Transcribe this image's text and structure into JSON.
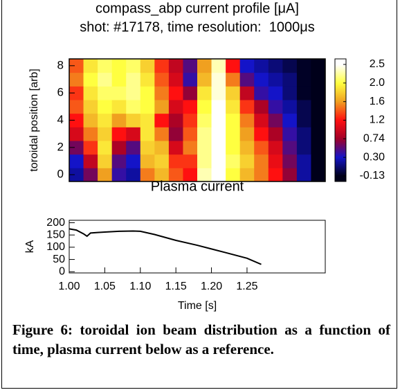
{
  "chart_data": [
    {
      "type": "heatmap",
      "title": "compass_abp current profile [μA]",
      "subtitle": "shot: #17178, time resolution:  1000μs",
      "ylabel": "toroidal position [arb]",
      "x": [
        1.01,
        1.03,
        1.05,
        1.07,
        1.09,
        1.11,
        1.13,
        1.15,
        1.17,
        1.19,
        1.21,
        1.23,
        1.25,
        1.27,
        1.29,
        1.31,
        1.33,
        1.35
      ],
      "y": [
        0,
        1,
        2,
        3,
        4,
        5,
        6,
        7,
        8
      ],
      "z": [
        [
          0.2,
          0.6,
          1.6,
          0.4,
          0.2,
          1.5,
          1.7,
          1.4,
          1.2,
          2.3,
          2.5,
          2.0,
          1.7,
          1.5,
          1.2,
          0.7,
          0.2,
          -0.13
        ],
        [
          0.3,
          0.9,
          1.8,
          0.5,
          0.3,
          1.7,
          1.8,
          1.3,
          1.3,
          2.2,
          2.5,
          2.1,
          1.8,
          1.5,
          1.1,
          0.6,
          0.2,
          -0.13
        ],
        [
          0.6,
          1.3,
          1.9,
          0.8,
          0.5,
          1.8,
          1.7,
          1.0,
          1.5,
          2.2,
          2.5,
          2.0,
          1.7,
          1.4,
          1.0,
          0.5,
          0.1,
          -0.13
        ],
        [
          1.0,
          1.5,
          1.8,
          1.2,
          1.0,
          1.9,
          1.5,
          0.7,
          1.4,
          2.2,
          2.5,
          2.0,
          1.6,
          1.2,
          0.8,
          0.4,
          0.1,
          -0.13
        ],
        [
          1.2,
          1.7,
          1.9,
          1.6,
          1.8,
          1.9,
          1.2,
          0.8,
          1.3,
          2.1,
          2.5,
          2.0,
          1.5,
          1.0,
          0.6,
          0.3,
          0.0,
          -0.13
        ],
        [
          1.4,
          1.8,
          2.0,
          1.9,
          2.1,
          2.0,
          1.6,
          1.0,
          1.2,
          2.0,
          2.5,
          1.9,
          1.3,
          0.8,
          0.4,
          0.2,
          0.0,
          -0.13
        ],
        [
          1.3,
          1.9,
          2.1,
          2.1,
          2.2,
          2.0,
          1.5,
          1.2,
          0.7,
          1.9,
          2.4,
          1.8,
          0.9,
          0.4,
          0.3,
          0.1,
          -0.1,
          -0.13
        ],
        [
          1.5,
          2.0,
          2.2,
          2.0,
          2.2,
          1.9,
          1.4,
          1.0,
          0.4,
          1.7,
          2.4,
          1.5,
          0.5,
          0.3,
          0.2,
          0.1,
          -0.1,
          -0.13
        ],
        [
          1.4,
          1.9,
          2.1,
          2.0,
          2.1,
          1.8,
          1.3,
          0.9,
          0.5,
          1.6,
          2.3,
          1.2,
          0.3,
          0.2,
          0.1,
          0.0,
          -0.1,
          -0.13
        ]
      ],
      "xlim": [
        1.0,
        1.36
      ],
      "ylim": [
        -0.5,
        8.5
      ],
      "yticks": [
        0,
        2,
        4,
        6,
        8
      ],
      "colorbar": {
        "ticks": [
          -0.13,
          {
            "value": 0.3,
            "label": "0.30"
          },
          0.74,
          1.2,
          1.6,
          {
            "value": 2.0,
            "label": "2.0"
          },
          2.5
        ],
        "colors": [
          "#00001a",
          "#1414c8",
          "#a00028",
          "#ff1010",
          "#f0a020",
          "#ffff40",
          "#ffffff"
        ]
      }
    },
    {
      "type": "line",
      "title": "Plasma current",
      "ylabel": "kA",
      "xlabel": "Time [s]",
      "x": [
        1.0,
        1.01,
        1.02,
        1.025,
        1.03,
        1.04,
        1.05,
        1.07,
        1.09,
        1.1,
        1.12,
        1.15,
        1.18,
        1.2,
        1.22,
        1.25,
        1.27
      ],
      "values": [
        175,
        170,
        155,
        145,
        158,
        160,
        162,
        165,
        166,
        165,
        152,
        128,
        108,
        93,
        78,
        55,
        30
      ],
      "color": "#000000",
      "xlim": [
        1.0,
        1.36
      ],
      "ylim": [
        -5,
        210
      ],
      "yticks": [
        0,
        50,
        100,
        150,
        200
      ],
      "xticks": [
        {
          "value": 1.0,
          "label": "1.00"
        },
        1.05,
        {
          "value": 1.1,
          "label": "1.10"
        },
        1.15,
        {
          "value": 1.2,
          "label": "1.20"
        },
        1.25
      ]
    }
  ],
  "caption": "Figure 6: toroidal ion beam distribution as a function of time, plasma current below as a reference."
}
